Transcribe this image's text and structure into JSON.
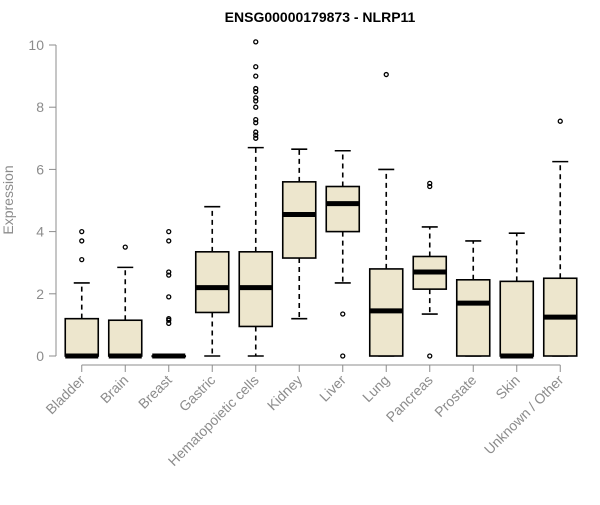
{
  "chart_data": {
    "type": "boxplot",
    "title": "ENSG00000179873 - NLRP11",
    "xlabel": "",
    "ylabel": "Expression",
    "ylim": [
      0,
      10
    ],
    "yticks": [
      "0",
      "2",
      "4",
      "6",
      "8",
      "10"
    ],
    "ytick_values": [
      0,
      2,
      4,
      6,
      8,
      10
    ],
    "box_fill": "#ede6cd",
    "box_stroke": "#000000",
    "axis_color": "#8c8c8c",
    "categories": [
      "Bladder",
      "Brain",
      "Breast",
      "Gastric",
      "Hematopoietic cells",
      "Kidney",
      "Liver",
      "Lung",
      "Pancreas",
      "Prostate",
      "Skin",
      "Unknown / Other"
    ],
    "boxes": [
      {
        "name": "Bladder",
        "whisker_low": 0,
        "q1": 0,
        "median": 0,
        "q3": 1.2,
        "whisker_high": 2.35,
        "outliers": [
          3.1,
          3.7,
          4.0
        ]
      },
      {
        "name": "Brain",
        "whisker_low": 0,
        "q1": 0,
        "median": 0,
        "q3": 1.15,
        "whisker_high": 2.85,
        "outliers": [
          3.5
        ]
      },
      {
        "name": "Breast",
        "whisker_low": 0,
        "q1": 0,
        "median": 0,
        "q3": 0,
        "whisker_high": 0,
        "outliers": [
          1.05,
          1.15,
          1.2,
          1.9,
          2.6,
          2.7,
          3.7,
          4.0
        ]
      },
      {
        "name": "Gastric",
        "whisker_low": 0,
        "q1": 1.4,
        "median": 2.2,
        "q3": 3.35,
        "whisker_high": 4.8,
        "outliers": []
      },
      {
        "name": "Hematopoietic cells",
        "whisker_low": 0,
        "q1": 0.95,
        "median": 2.2,
        "q3": 3.35,
        "whisker_high": 6.7,
        "outliers": [
          7.0,
          7.1,
          7.2,
          7.5,
          7.6,
          8.0,
          8.2,
          8.3,
          8.5,
          8.6,
          9.0,
          9.3,
          10.1
        ]
      },
      {
        "name": "Kidney",
        "whisker_low": 1.2,
        "q1": 3.15,
        "median": 4.55,
        "q3": 5.6,
        "whisker_high": 6.65,
        "outliers": []
      },
      {
        "name": "Liver",
        "whisker_low": 2.35,
        "q1": 4.0,
        "median": 4.9,
        "q3": 5.45,
        "whisker_high": 6.6,
        "outliers": [
          0,
          1.35
        ]
      },
      {
        "name": "Lung",
        "whisker_low": 0,
        "q1": 0,
        "median": 1.45,
        "q3": 2.8,
        "whisker_high": 6.0,
        "outliers": [
          9.05
        ]
      },
      {
        "name": "Pancreas",
        "whisker_low": 1.35,
        "q1": 2.15,
        "median": 2.7,
        "q3": 3.2,
        "whisker_high": 4.15,
        "outliers": [
          0,
          5.45,
          5.55
        ]
      },
      {
        "name": "Prostate",
        "whisker_low": 0,
        "q1": 0,
        "median": 1.7,
        "q3": 2.45,
        "whisker_high": 3.7,
        "outliers": []
      },
      {
        "name": "Skin",
        "whisker_low": 0,
        "q1": 0,
        "median": 0,
        "q3": 2.4,
        "whisker_high": 3.95,
        "outliers": []
      },
      {
        "name": "Unknown / Other",
        "whisker_low": 0,
        "q1": 0,
        "median": 1.25,
        "q3": 2.5,
        "whisker_high": 6.25,
        "outliers": [
          7.55
        ]
      }
    ]
  }
}
